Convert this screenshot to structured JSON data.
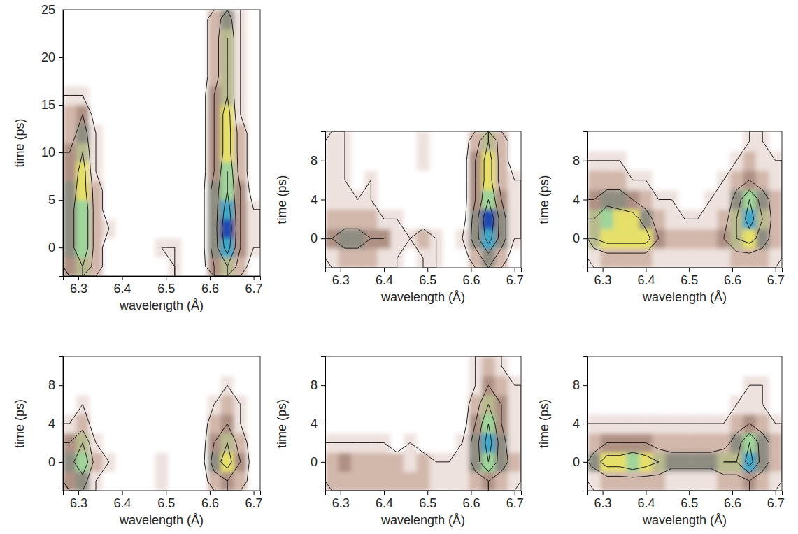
{
  "chart_data": [
    {
      "type": "heatmap",
      "xlabel": "wavelength (Å)",
      "ylabel": "time (ps)",
      "xlim": [
        6.265,
        6.715
      ],
      "ylim": [
        -3,
        25
      ],
      "xticks": [
        6.3,
        6.4,
        6.5,
        6.6,
        6.7
      ],
      "yticks": [
        0,
        5,
        10,
        15,
        20,
        25
      ],
      "x": [
        6.28,
        6.31,
        6.34,
        6.37,
        6.4,
        6.43,
        6.46,
        6.49,
        6.52,
        6.55,
        6.58,
        6.61,
        6.64,
        6.67,
        6.7
      ],
      "y": [
        -2,
        0,
        2,
        4,
        6,
        8,
        10,
        12,
        14,
        16,
        18,
        20,
        22,
        24
      ],
      "z": [
        [
          3,
          5,
          2,
          0,
          0,
          0,
          0,
          0,
          1,
          0,
          0,
          3,
          5,
          2,
          0
        ],
        [
          4,
          7,
          2,
          0,
          0,
          0,
          0,
          1,
          1,
          0,
          0,
          4,
          8,
          3,
          1
        ],
        [
          4,
          7,
          2,
          1,
          0,
          0,
          0,
          0,
          0,
          0,
          0,
          4,
          9,
          3,
          1
        ],
        [
          4,
          7,
          2,
          0,
          0,
          0,
          0,
          0,
          0,
          0,
          0,
          4,
          8,
          3,
          1
        ],
        [
          4,
          6,
          2,
          0,
          0,
          0,
          0,
          0,
          0,
          0,
          0,
          4,
          7,
          3,
          0
        ],
        [
          3,
          6,
          1,
          0,
          0,
          0,
          0,
          0,
          0,
          0,
          0,
          3,
          7,
          2,
          0
        ],
        [
          3,
          5,
          1,
          0,
          0,
          0,
          0,
          0,
          0,
          0,
          0,
          3,
          6,
          2,
          0
        ],
        [
          2,
          4,
          1,
          0,
          0,
          0,
          0,
          0,
          0,
          0,
          0,
          3,
          6,
          2,
          0
        ],
        [
          2,
          3,
          0,
          0,
          0,
          0,
          0,
          0,
          0,
          0,
          0,
          3,
          6,
          1,
          0
        ],
        [
          1,
          1,
          0,
          0,
          0,
          0,
          0,
          0,
          0,
          0,
          0,
          3,
          5,
          1,
          0
        ],
        [
          0,
          0,
          0,
          0,
          0,
          0,
          0,
          0,
          0,
          0,
          0,
          2,
          5,
          1,
          0
        ],
        [
          0,
          0,
          0,
          0,
          0,
          0,
          0,
          0,
          0,
          0,
          0,
          2,
          5,
          1,
          0
        ],
        [
          0,
          0,
          0,
          0,
          0,
          0,
          0,
          0,
          0,
          0,
          0,
          2,
          5,
          1,
          0
        ],
        [
          0,
          0,
          0,
          0,
          0,
          0,
          0,
          0,
          0,
          0,
          0,
          2,
          4,
          1,
          0
        ]
      ],
      "zlim": [
        0,
        9
      ],
      "contour_levels": [
        1,
        3,
        5,
        7
      ]
    },
    {
      "type": "heatmap",
      "xlabel": "wavelength (Å)",
      "ylabel": "time (ps)",
      "xlim": [
        6.265,
        6.715
      ],
      "ylim": [
        -3,
        11
      ],
      "xticks": [
        6.3,
        6.4,
        6.5,
        6.6,
        6.7
      ],
      "yticks": [
        0,
        4,
        8
      ],
      "x": [
        6.28,
        6.31,
        6.34,
        6.37,
        6.4,
        6.43,
        6.46,
        6.49,
        6.52,
        6.55,
        6.58,
        6.61,
        6.64,
        6.67,
        6.7
      ],
      "y": [
        -2,
        0,
        2,
        4,
        6,
        8,
        10
      ],
      "z": [
        [
          1,
          2,
          2,
          2,
          1,
          1,
          0,
          1,
          1,
          0,
          0,
          2,
          4,
          2,
          0
        ],
        [
          3,
          4,
          4,
          3,
          3,
          1,
          1,
          2,
          1,
          0,
          1,
          4,
          8,
          4,
          1
        ],
        [
          2,
          2,
          2,
          2,
          1,
          1,
          0,
          0,
          0,
          0,
          0,
          4,
          9,
          4,
          1
        ],
        [
          1,
          1,
          1,
          1,
          0,
          0,
          0,
          0,
          0,
          0,
          0,
          3,
          7,
          3,
          1
        ],
        [
          1,
          1,
          0,
          1,
          0,
          0,
          0,
          0,
          0,
          0,
          0,
          3,
          6,
          2,
          1
        ],
        [
          1,
          1,
          0,
          0,
          0,
          0,
          0,
          1,
          0,
          0,
          0,
          3,
          6,
          2,
          0
        ],
        [
          1,
          1,
          0,
          0,
          0,
          0,
          0,
          1,
          0,
          0,
          0,
          2,
          5,
          2,
          0
        ]
      ],
      "zlim": [
        0,
        9
      ],
      "contour_levels": [
        1,
        3,
        5,
        7
      ]
    },
    {
      "type": "heatmap",
      "xlabel": "wavelength (Å)",
      "ylabel": "time (ps)",
      "xlim": [
        6.265,
        6.715
      ],
      "ylim": [
        -3,
        11
      ],
      "xticks": [
        6.3,
        6.4,
        6.5,
        6.6,
        6.7
      ],
      "yticks": [
        0,
        4,
        8
      ],
      "x": [
        6.28,
        6.31,
        6.34,
        6.37,
        6.4,
        6.43,
        6.46,
        6.49,
        6.52,
        6.55,
        6.58,
        6.61,
        6.64,
        6.67,
        6.7
      ],
      "y": [
        -2,
        0,
        2,
        4,
        6,
        8,
        10
      ],
      "z": [
        [
          1,
          2,
          2,
          2,
          2,
          1,
          1,
          1,
          1,
          1,
          1,
          2,
          2,
          2,
          1
        ],
        [
          5,
          6,
          6,
          6,
          6,
          3,
          2,
          2,
          2,
          2,
          3,
          5,
          6,
          4,
          2
        ],
        [
          5,
          7,
          6,
          6,
          4,
          2,
          1,
          1,
          1,
          1,
          2,
          5,
          8,
          5,
          2
        ],
        [
          3,
          4,
          4,
          3,
          2,
          1,
          1,
          0,
          0,
          1,
          1,
          4,
          7,
          4,
          2
        ],
        [
          2,
          2,
          2,
          1,
          1,
          0,
          0,
          0,
          0,
          0,
          1,
          2,
          3,
          2,
          1
        ],
        [
          1,
          1,
          1,
          0,
          0,
          0,
          0,
          0,
          0,
          0,
          0,
          1,
          2,
          1,
          1
        ],
        [
          0,
          0,
          0,
          0,
          0,
          0,
          0,
          0,
          0,
          0,
          0,
          0,
          1,
          1,
          0
        ]
      ],
      "zlim": [
        0,
        9
      ],
      "contour_levels": [
        1,
        3,
        5,
        7
      ]
    },
    {
      "type": "heatmap",
      "xlabel": "wavelength (Å)",
      "ylabel": "time (ps)",
      "xlim": [
        6.265,
        6.715
      ],
      "ylim": [
        -3,
        11
      ],
      "xticks": [
        6.3,
        6.4,
        6.5,
        6.6,
        6.7
      ],
      "yticks": [
        0,
        4,
        8
      ],
      "x": [
        6.28,
        6.31,
        6.34,
        6.37,
        6.4,
        6.43,
        6.46,
        6.49,
        6.52,
        6.55,
        6.58,
        6.61,
        6.64,
        6.67,
        6.7
      ],
      "y": [
        -2,
        0,
        2,
        4,
        6,
        8,
        10
      ],
      "z": [
        [
          3,
          4,
          1,
          0,
          0,
          0,
          0,
          1,
          0,
          0,
          0,
          2,
          3,
          2,
          0
        ],
        [
          4,
          7,
          2,
          1,
          0,
          0,
          0,
          1,
          0,
          0,
          0,
          4,
          6,
          3,
          0
        ],
        [
          3,
          5,
          1,
          0,
          0,
          0,
          0,
          0,
          0,
          0,
          0,
          3,
          5,
          2,
          0
        ],
        [
          1,
          2,
          0,
          0,
          0,
          0,
          0,
          0,
          0,
          0,
          0,
          2,
          3,
          1,
          0
        ],
        [
          0,
          1,
          0,
          0,
          0,
          0,
          0,
          0,
          0,
          0,
          0,
          1,
          2,
          1,
          0
        ],
        [
          0,
          0,
          0,
          0,
          0,
          0,
          0,
          0,
          0,
          0,
          0,
          0,
          1,
          0,
          0
        ],
        [
          0,
          0,
          0,
          0,
          0,
          0,
          0,
          0,
          0,
          0,
          0,
          0,
          0,
          0,
          0
        ]
      ],
      "zlim": [
        0,
        9
      ],
      "contour_levels": [
        1,
        3,
        5,
        7
      ]
    },
    {
      "type": "heatmap",
      "xlabel": "wavelength (Å)",
      "ylabel": "time (ps)",
      "xlim": [
        6.265,
        6.715
      ],
      "ylim": [
        -3,
        11
      ],
      "xticks": [
        6.3,
        6.4,
        6.5,
        6.6,
        6.7
      ],
      "yticks": [
        0,
        4,
        8
      ],
      "x": [
        6.28,
        6.31,
        6.34,
        6.37,
        6.4,
        6.43,
        6.46,
        6.49,
        6.52,
        6.55,
        6.58,
        6.61,
        6.64,
        6.67,
        6.7
      ],
      "y": [
        -2,
        0,
        2,
        4,
        6,
        8,
        10
      ],
      "z": [
        [
          2,
          2,
          2,
          2,
          2,
          2,
          2,
          2,
          1,
          1,
          1,
          2,
          3,
          2,
          1
        ],
        [
          2,
          3,
          2,
          2,
          2,
          2,
          1,
          2,
          1,
          1,
          1,
          4,
          7,
          4,
          2
        ],
        [
          1,
          1,
          1,
          1,
          1,
          0,
          1,
          0,
          0,
          0,
          1,
          4,
          8,
          4,
          1
        ],
        [
          0,
          0,
          0,
          0,
          0,
          0,
          0,
          0,
          0,
          0,
          0,
          3,
          7,
          3,
          1
        ],
        [
          0,
          0,
          0,
          0,
          0,
          0,
          0,
          0,
          0,
          0,
          0,
          2,
          5,
          3,
          1
        ],
        [
          0,
          0,
          0,
          0,
          0,
          0,
          0,
          0,
          0,
          0,
          0,
          1,
          3,
          2,
          1
        ],
        [
          0,
          0,
          0,
          0,
          0,
          0,
          0,
          0,
          0,
          0,
          0,
          1,
          2,
          1,
          0
        ]
      ],
      "zlim": [
        0,
        9
      ],
      "contour_levels": [
        1,
        3,
        5,
        7
      ]
    },
    {
      "type": "heatmap",
      "xlabel": "wavelength (Å)",
      "ylabel": "time (ps)",
      "xlim": [
        6.265,
        6.715
      ],
      "ylim": [
        -3,
        11
      ],
      "xticks": [
        6.3,
        6.4,
        6.5,
        6.6,
        6.7
      ],
      "yticks": [
        0,
        4,
        8
      ],
      "x": [
        6.28,
        6.31,
        6.34,
        6.37,
        6.4,
        6.43,
        6.46,
        6.49,
        6.52,
        6.55,
        6.58,
        6.61,
        6.64,
        6.67,
        6.7
      ],
      "y": [
        -2,
        0,
        2,
        4,
        6,
        8,
        10
      ],
      "z": [
        [
          1,
          2,
          2,
          2,
          2,
          2,
          1,
          1,
          1,
          1,
          2,
          2,
          3,
          2,
          1
        ],
        [
          4,
          6,
          6,
          7,
          6,
          5,
          4,
          4,
          4,
          4,
          5,
          5,
          8,
          4,
          2
        ],
        [
          2,
          3,
          3,
          3,
          3,
          2,
          2,
          2,
          2,
          2,
          2,
          4,
          7,
          4,
          2
        ],
        [
          1,
          1,
          1,
          1,
          1,
          1,
          1,
          1,
          1,
          1,
          1,
          2,
          3,
          2,
          1
        ],
        [
          0,
          0,
          0,
          0,
          0,
          0,
          0,
          0,
          0,
          0,
          0,
          1,
          1,
          1,
          0
        ],
        [
          0,
          0,
          0,
          0,
          0,
          0,
          0,
          0,
          0,
          0,
          0,
          0,
          1,
          1,
          0
        ],
        [
          0,
          0,
          0,
          0,
          0,
          0,
          0,
          0,
          0,
          0,
          0,
          0,
          0,
          0,
          0
        ]
      ],
      "zlim": [
        0,
        9
      ],
      "contour_levels": [
        1,
        3,
        5,
        7
      ]
    }
  ]
}
